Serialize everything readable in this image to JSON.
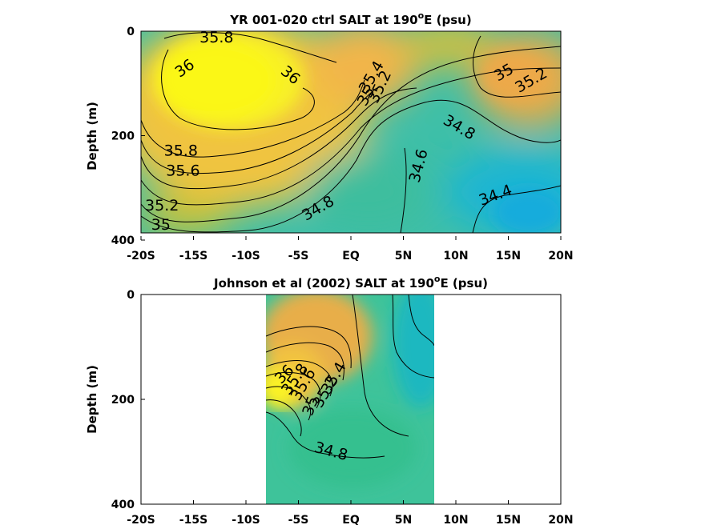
{
  "chart_data": [
    {
      "type": "contour",
      "title": "YR 001-020 ctrl SALT at 190",
      "title_sup": "o",
      "title_end": "E (psu)",
      "ylabel": "Depth (m)",
      "xlabel": "",
      "xlim": [
        -20,
        20
      ],
      "ylim": [
        0,
        400
      ],
      "y_reversed": true,
      "colormap": "parula",
      "grid": false,
      "xticks": [
        -20,
        -15,
        -10,
        -5,
        0,
        5,
        10,
        15,
        20
      ],
      "xtick_labels": [
        "-20S",
        "-15S",
        "-10S",
        "-5S",
        "EQ",
        "5N",
        "10N",
        "15N",
        "20N"
      ],
      "yticks": [
        0,
        200,
        400
      ],
      "ytick_labels": [
        "0",
        "200",
        "400"
      ],
      "data_extent": {
        "lat": [
          -20,
          20
        ],
        "depth": [
          0,
          385
        ]
      },
      "value_range": [
        34.3,
        36.1
      ],
      "contour_labels": [
        {
          "text": "35.8",
          "lat": -12.8,
          "depth": 13
        },
        {
          "text": "36",
          "lat": -15.8,
          "depth": 72
        },
        {
          "text": "36",
          "lat": -5.8,
          "depth": 85
        },
        {
          "text": "35.4",
          "lat": 2.0,
          "depth": 88
        },
        {
          "text": "35.2",
          "lat": 2.8,
          "depth": 107
        },
        {
          "text": "35",
          "lat": 1.5,
          "depth": 125
        },
        {
          "text": "35",
          "lat": 14.6,
          "depth": 80
        },
        {
          "text": "35.2",
          "lat": 17.2,
          "depth": 95
        },
        {
          "text": "34.8",
          "lat": 10.3,
          "depth": 185
        },
        {
          "text": "35.8",
          "lat": -16.2,
          "depth": 230
        },
        {
          "text": "35.6",
          "lat": -16.0,
          "depth": 268
        },
        {
          "text": "34.6",
          "lat": 6.5,
          "depth": 258
        },
        {
          "text": "34.4",
          "lat": 13.8,
          "depth": 315
        },
        {
          "text": "34.8",
          "lat": -3.1,
          "depth": 340
        },
        {
          "text": "35.2",
          "lat": -18.0,
          "depth": 335
        },
        {
          "text": "35",
          "lat": -18.1,
          "depth": 372
        }
      ]
    },
    {
      "type": "contour",
      "title": "Johnson et al (2002) SALT at 190",
      "title_sup": "o",
      "title_end": "E (psu)",
      "ylabel": "Depth (m)",
      "xlabel": "",
      "xlim": [
        -20,
        20
      ],
      "ylim": [
        0,
        400
      ],
      "y_reversed": true,
      "colormap": "parula",
      "grid": false,
      "xticks": [
        -20,
        -15,
        -10,
        -5,
        0,
        5,
        10,
        15,
        20
      ],
      "xtick_labels": [
        "-20S",
        "-15S",
        "-10S",
        "-5S",
        "EQ",
        "5N",
        "10N",
        "15N",
        "20N"
      ],
      "yticks": [
        0,
        200,
        400
      ],
      "ytick_labels": [
        "0",
        "200",
        "400"
      ],
      "data_extent": {
        "lat": [
          -8,
          8
        ],
        "depth": [
          0,
          400
        ]
      },
      "value_range": [
        34.3,
        36.1
      ],
      "contour_labels": [
        {
          "text": "36",
          "lat": -6.3,
          "depth": 153
        },
        {
          "text": "35.8",
          "lat": -5.3,
          "depth": 162
        },
        {
          "text": "35.6",
          "lat": -4.5,
          "depth": 172
        },
        {
          "text": "35.4",
          "lat": -1.6,
          "depth": 160
        },
        {
          "text": "35.2",
          "lat": -2.4,
          "depth": 186
        },
        {
          "text": "35",
          "lat": -3.8,
          "depth": 213
        },
        {
          "text": "34.8",
          "lat": -1.9,
          "depth": 300
        }
      ]
    }
  ]
}
